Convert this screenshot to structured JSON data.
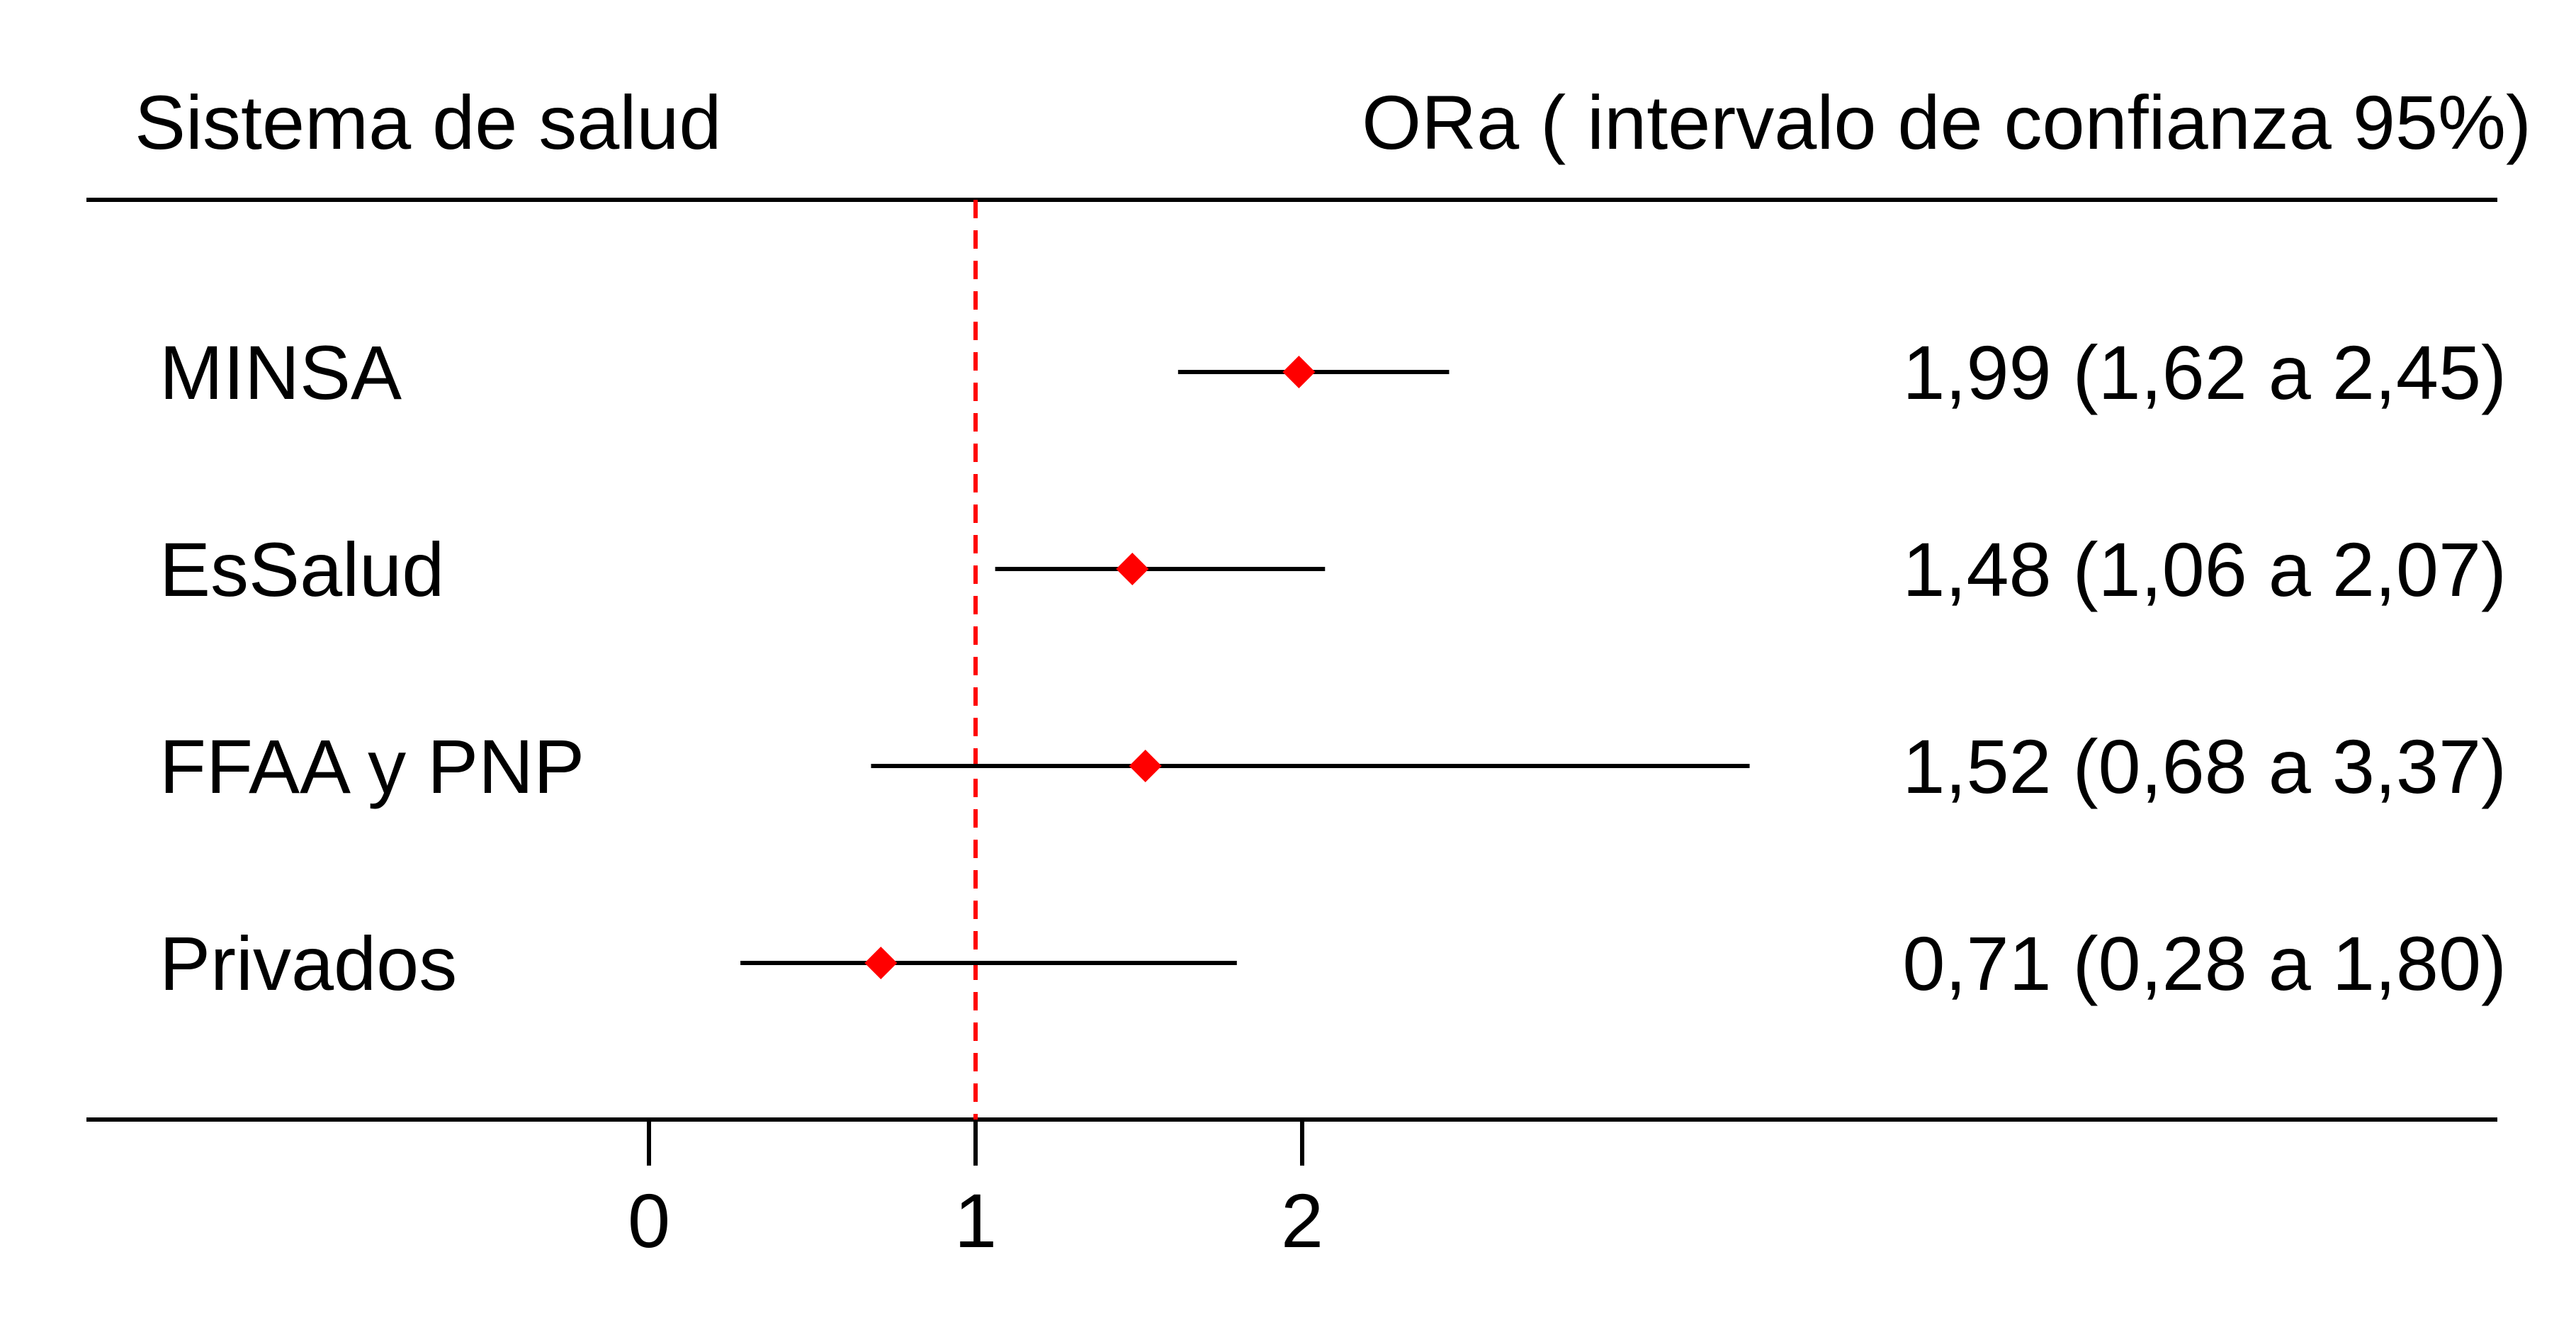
{
  "chart_data": {
    "type": "forest",
    "header_left": "Sistema de salud",
    "header_right": "ORa ( intervalo de confianza 95%)",
    "reference_line": 1,
    "xticks": [
      0,
      1,
      2
    ],
    "xtick_labels": [
      "0",
      "1",
      "2"
    ],
    "rows": [
      {
        "label": "MINSA",
        "estimate": 1.99,
        "lower": 1.62,
        "upper": 2.45,
        "text": "1,99 (1,62 a 2,45)"
      },
      {
        "label": "EsSalud",
        "estimate": 1.48,
        "lower": 1.06,
        "upper": 2.07,
        "text": "1,48 (1,06 a 2,07)"
      },
      {
        "label": "FFAA y PNP",
        "estimate": 1.52,
        "lower": 0.68,
        "upper": 3.37,
        "text": "1,52 (0,68 a 3,37)"
      },
      {
        "label": "Privados",
        "estimate": 0.71,
        "lower": 0.28,
        "upper": 1.8,
        "text": "0,71 (0,28 a 1,80)"
      }
    ],
    "colors": {
      "point": "#ff0000",
      "reference_line": "#ff0000",
      "whisker": "#000000",
      "rule": "#000000"
    }
  }
}
